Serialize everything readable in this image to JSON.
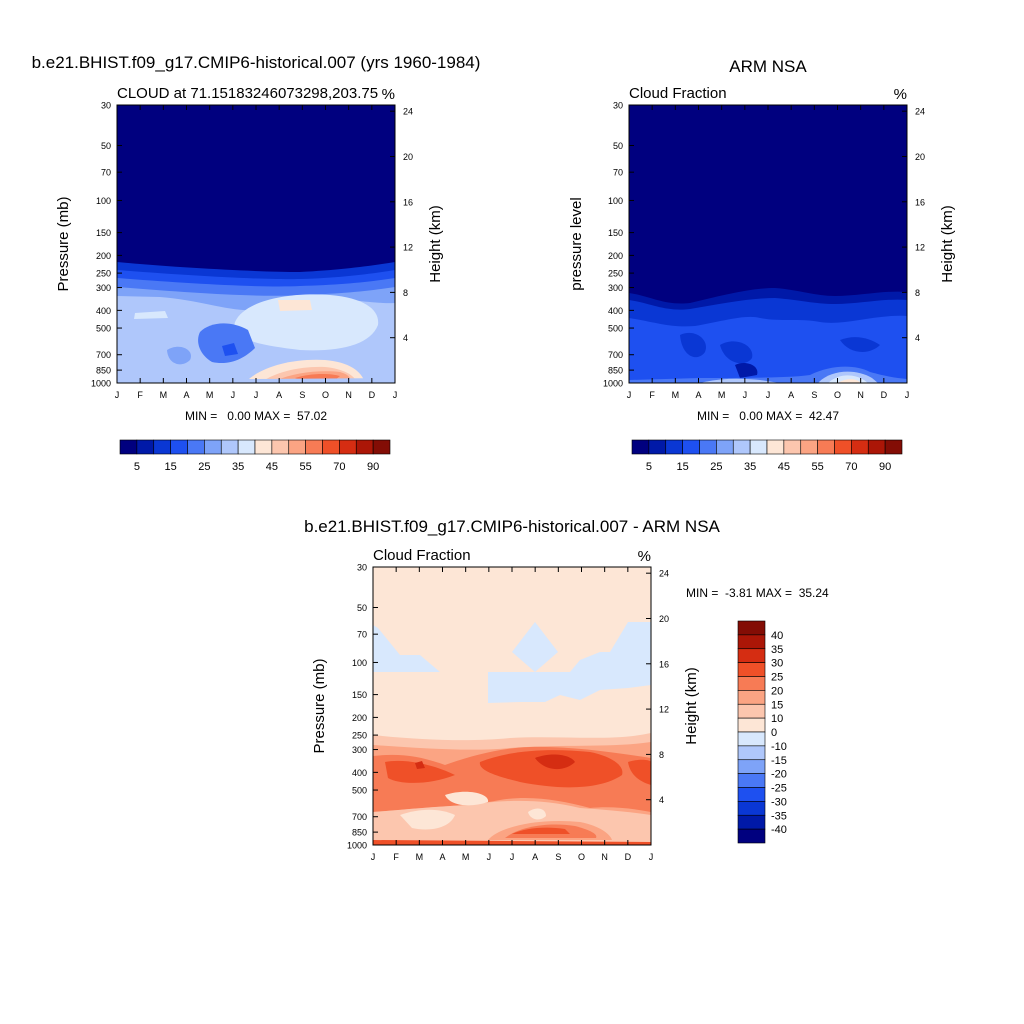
{
  "chart_data": [
    {
      "type": "heatmap",
      "id": "model",
      "title": "b.e21.BHIST.f09_g17.CMIP6-historical.007 (yrs 1960-1984)",
      "left_title": "CLOUD at 71.15183246073298,203.75",
      "units": "%",
      "ylabel": "Pressure (mb)",
      "ylabel_right": "Height (km)",
      "x_ticks": [
        "J",
        "F",
        "M",
        "A",
        "M",
        "J",
        "J",
        "A",
        "S",
        "O",
        "N",
        "D",
        "J"
      ],
      "y_ticks": [
        "30",
        "50",
        "70",
        "100",
        "150",
        "200",
        "250",
        "300",
        "400",
        "500",
        "700",
        "850",
        "1000"
      ],
      "height_ticks": [
        "24",
        "20",
        "16",
        "12",
        "8",
        "4"
      ],
      "min_max": "MIN =   0.00 MAX =  57.02",
      "colorbar_labels": [
        "5",
        "15",
        "25",
        "35",
        "45",
        "55",
        "70",
        "90"
      ],
      "colorbar_colors": [
        "#00007f",
        "#0019a8",
        "#0a37d4",
        "#1e50f0",
        "#4a78f5",
        "#7ea3f8",
        "#afc7fb",
        "#d8e8fd",
        "#fde6d6",
        "#fcc6ae",
        "#fba483",
        "#f77b55",
        "#ef5028",
        "#d52d12",
        "#ab1607",
        "#830d05"
      ],
      "description": "Monthly climatology of cloud fraction vs pressure; near 0% above 200 mb, 20-40% between 250 and 850 mb, maximum about 57% near 900 mb in Sep-Oct."
    },
    {
      "type": "heatmap",
      "id": "obs",
      "title": "ARM NSA",
      "left_title": "Cloud Fraction",
      "units": "%",
      "ylabel": "pressure level",
      "ylabel_right": "Height (km)",
      "x_ticks": [
        "J",
        "F",
        "M",
        "A",
        "M",
        "J",
        "J",
        "A",
        "S",
        "O",
        "N",
        "D",
        "J"
      ],
      "y_ticks": [
        "30",
        "50",
        "70",
        "100",
        "150",
        "200",
        "250",
        "300",
        "400",
        "500",
        "700",
        "850",
        "1000"
      ],
      "height_ticks": [
        "24",
        "20",
        "16",
        "12",
        "8",
        "4"
      ],
      "min_max": "MIN =   0.00 MAX =  42.47",
      "colorbar_labels": [
        "5",
        "15",
        "25",
        "35",
        "45",
        "55",
        "70",
        "90"
      ],
      "colorbar_colors": [
        "#00007f",
        "#0019a8",
        "#0a37d4",
        "#1e50f0",
        "#4a78f5",
        "#7ea3f8",
        "#afc7fb",
        "#d8e8fd",
        "#fde6d6",
        "#fcc6ae",
        "#fba483",
        "#f77b55",
        "#ef5028",
        "#d52d12",
        "#ab1607",
        "#830d05"
      ],
      "description": "Observed cloud fraction; near 0% above 300 mb, 5-25% in the lower troposphere, maximum about 42% near surface in Sep-Oct."
    },
    {
      "type": "heatmap",
      "id": "diff",
      "title": "b.e21.BHIST.f09_g17.CMIP6-historical.007 - ARM NSA",
      "left_title": "Cloud Fraction",
      "units": "%",
      "ylabel": "Pressure (mb)",
      "ylabel_right": "Height (km)",
      "x_ticks": [
        "J",
        "F",
        "M",
        "A",
        "M",
        "J",
        "J",
        "A",
        "S",
        "O",
        "N",
        "D",
        "J"
      ],
      "y_ticks": [
        "30",
        "50",
        "70",
        "100",
        "150",
        "200",
        "250",
        "300",
        "400",
        "500",
        "700",
        "850",
        "1000"
      ],
      "height_ticks": [
        "24",
        "20",
        "16",
        "12",
        "8",
        "4"
      ],
      "min_max": "MIN =  -3.81 MAX =  35.24",
      "colorbar_labels": [
        "40",
        "35",
        "30",
        "25",
        "20",
        "15",
        "10",
        "0",
        "-10",
        "-15",
        "-20",
        "-25",
        "-30",
        "-35",
        "-40"
      ],
      "colorbar_colors": [
        "#830d05",
        "#ab1607",
        "#d52d12",
        "#ef5028",
        "#f77b55",
        "#fba483",
        "#fcc6ae",
        "#fde6d6",
        "#d8e8fd",
        "#afc7fb",
        "#7ea3f8",
        "#4a78f5",
        "#1e50f0",
        "#0a37d4",
        "#0019a8",
        "#00007f"
      ],
      "description": "Model minus observations; 0-10% above 200 mb, 15-35% positive bias between 250 and 500 mb and near 850 mb in Jul-Oct."
    }
  ]
}
